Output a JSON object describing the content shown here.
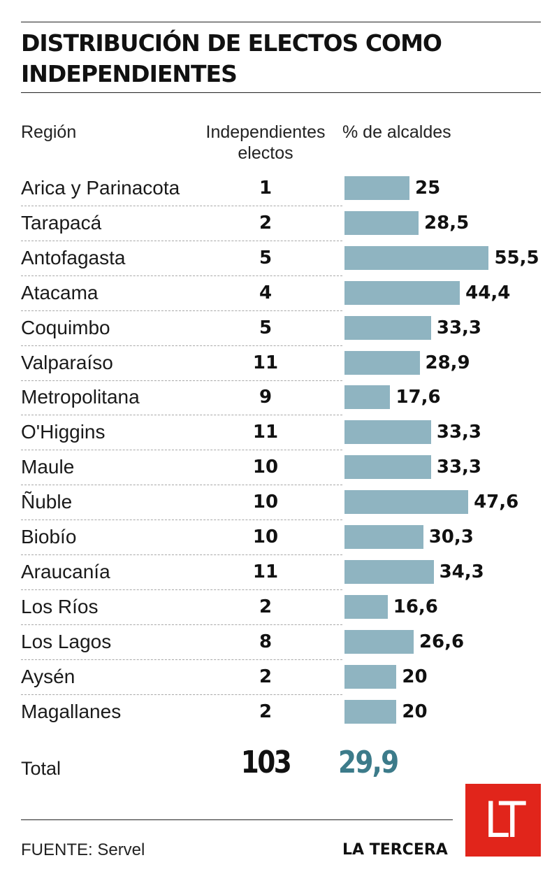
{
  "title": "DISTRIBUCIÓN DE ELECTOS COMO INDEPENDIENTES",
  "headers": {
    "region": "Región",
    "independientes": "Independientes electos",
    "pct": "% de alcaldes"
  },
  "chart_data": {
    "type": "bar",
    "orientation": "horizontal",
    "title": "DISTRIBUCIÓN DE ELECTOS COMO INDEPENDIENTES",
    "categories": [
      "Arica y Parinacota",
      "Tarapacá",
      "Antofagasta",
      "Atacama",
      "Coquimbo",
      "Valparaíso",
      "Metropolitana",
      "O'Higgins",
      "Maule",
      "Ñuble",
      "Biobío",
      "Araucanía",
      "Los Ríos",
      "Los Lagos",
      "Aysén",
      "Magallanes"
    ],
    "independientes": [
      1,
      2,
      5,
      4,
      5,
      11,
      9,
      11,
      10,
      10,
      10,
      11,
      2,
      8,
      2,
      2
    ],
    "values": [
      25,
      28.5,
      55.5,
      44.4,
      33.3,
      28.9,
      17.6,
      33.3,
      33.3,
      47.6,
      30.3,
      34.3,
      16.6,
      26.6,
      20,
      20
    ],
    "value_labels": [
      "25",
      "28,5",
      "55,5",
      "44,4",
      "33,3",
      "28,9",
      "17,6",
      "33,3",
      "33,3",
      "47,6",
      "30,3",
      "34,3",
      "16,6",
      "26,6",
      "20",
      "20"
    ],
    "bar_color": "#8fb4c1",
    "total": {
      "label": "Total",
      "independientes": "103",
      "pct": "29,9",
      "pct_color": "#3c7b8a"
    }
  },
  "footer": {
    "source": "FUENTE: Servel",
    "brand": "LA TERCERA",
    "logo_text": "LT",
    "logo_color": "#e1251b"
  }
}
